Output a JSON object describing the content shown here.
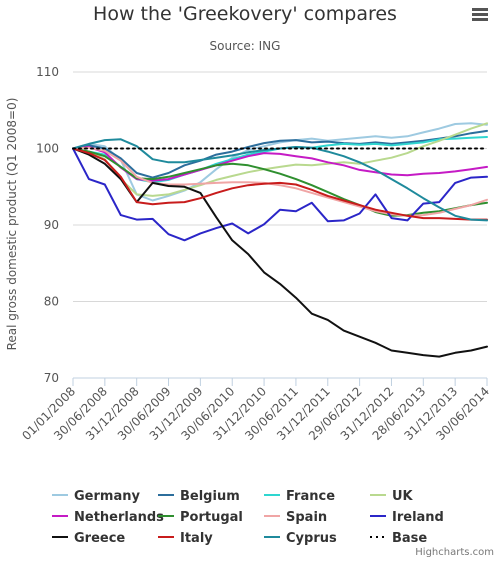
{
  "ui": {
    "menu_icon": "hamburger-menu-icon",
    "credits": "Highcharts.com"
  },
  "chart_data": {
    "type": "line",
    "title": "How the 'Greekovery' compares",
    "subtitle": "Source: ING",
    "ylabel": "Real gross domestic product (Q1 2008=0)",
    "ylim": [
      70,
      110
    ],
    "yticks": [
      70,
      80,
      90,
      100,
      110
    ],
    "x_categories": [
      "01/01/2008",
      "30/06/2008",
      "31/12/2008",
      "30/06/2009",
      "31/12/2009",
      "30/06/2010",
      "31/12/2010",
      "30/06/2011",
      "31/12/2011",
      "29/06/2012",
      "31/12/2012",
      "28/06/2013",
      "31/12/2013",
      "30/06/2014"
    ],
    "x_range": [
      0,
      13
    ],
    "grid": "horizontal",
    "legend_position": "bottom",
    "series": [
      {
        "name": "Germany",
        "color": "#9ecae1",
        "dashed": false,
        "x": [
          0,
          0.5,
          1,
          1.5,
          2,
          2.5,
          3,
          3.5,
          4,
          4.5,
          5,
          5.5,
          6,
          6.5,
          7,
          7.5,
          8,
          8.5,
          9,
          9.5,
          10,
          10.5,
          11,
          11.5,
          12,
          12.5,
          13
        ],
        "y": [
          100,
          100.6,
          100.3,
          98.5,
          94.0,
          93.2,
          93.8,
          94.5,
          95.6,
          97.3,
          98.8,
          99.8,
          100.3,
          100.8,
          101.1,
          101.3,
          101.0,
          101.2,
          101.4,
          101.6,
          101.4,
          101.6,
          102.1,
          102.6,
          103.2,
          103.3,
          103.1
        ]
      },
      {
        "name": "Belgium",
        "color": "#2c6e9c",
        "dashed": false,
        "x": [
          0,
          0.5,
          1,
          1.5,
          2,
          2.5,
          3,
          3.5,
          4,
          4.5,
          5,
          5.5,
          6,
          6.5,
          7,
          7.5,
          8,
          8.5,
          9,
          9.5,
          10,
          10.5,
          11,
          11.5,
          12,
          12.5,
          13
        ],
        "y": [
          100,
          100.4,
          100.0,
          98.7,
          96.8,
          96.2,
          96.8,
          97.8,
          98.4,
          99.2,
          99.6,
          100.2,
          100.7,
          101.0,
          101.1,
          100.8,
          100.9,
          100.7,
          100.6,
          100.8,
          100.6,
          100.8,
          101.0,
          101.3,
          101.6,
          102.0,
          102.3
        ]
      },
      {
        "name": "France",
        "color": "#2ed6d0",
        "dashed": false,
        "x": [
          0,
          0.5,
          1,
          1.5,
          2,
          2.5,
          3,
          3.5,
          4,
          4.5,
          5,
          5.5,
          6,
          6.5,
          7,
          7.5,
          8,
          8.5,
          9,
          9.5,
          10,
          10.5,
          11,
          11.5,
          12,
          12.5,
          13
        ],
        "y": [
          100,
          99.6,
          99.2,
          97.6,
          96.0,
          95.6,
          95.9,
          96.6,
          97.2,
          98.0,
          98.6,
          99.2,
          99.6,
          100.0,
          100.2,
          100.1,
          100.4,
          100.6,
          100.5,
          100.6,
          100.4,
          100.6,
          100.8,
          101.2,
          101.3,
          101.4,
          101.5
        ]
      },
      {
        "name": "UK",
        "color": "#b9d98f",
        "dashed": false,
        "x": [
          0,
          0.5,
          1,
          1.5,
          2,
          2.5,
          3,
          3.5,
          4,
          4.5,
          5,
          5.5,
          6,
          6.5,
          7,
          7.5,
          8,
          8.5,
          9,
          9.5,
          10,
          10.5,
          11,
          11.5,
          12,
          12.5,
          13
        ],
        "y": [
          100,
          99.6,
          98.6,
          96.0,
          94.0,
          93.8,
          94.0,
          94.6,
          95.2,
          95.9,
          96.4,
          96.9,
          97.3,
          97.6,
          97.9,
          97.8,
          98.0,
          98.2,
          98.0,
          98.4,
          98.8,
          99.4,
          100.3,
          101.0,
          101.8,
          102.6,
          103.3
        ]
      },
      {
        "name": "Netherlands",
        "color": "#c51bc5",
        "dashed": false,
        "x": [
          0,
          0.5,
          1,
          1.5,
          2,
          2.5,
          3,
          3.5,
          4,
          4.5,
          5,
          5.5,
          6,
          6.5,
          7,
          7.5,
          8,
          8.5,
          9,
          9.5,
          10,
          10.5,
          11,
          11.5,
          12,
          12.5,
          13
        ],
        "y": [
          100,
          100.2,
          99.5,
          97.5,
          96.0,
          95.8,
          96.0,
          96.6,
          97.2,
          97.8,
          98.4,
          99.0,
          99.4,
          99.3,
          99.0,
          98.7,
          98.2,
          97.8,
          97.2,
          96.9,
          96.6,
          96.5,
          96.7,
          96.8,
          97.0,
          97.3,
          97.6
        ]
      },
      {
        "name": "Portugal",
        "color": "#2f8f2f",
        "dashed": false,
        "x": [
          0,
          0.5,
          1,
          1.5,
          2,
          2.5,
          3,
          3.5,
          4,
          4.5,
          5,
          5.5,
          6,
          6.5,
          7,
          7.5,
          8,
          8.5,
          9,
          9.5,
          10,
          10.5,
          11,
          11.5,
          12,
          12.5,
          13
        ],
        "y": [
          100,
          99.6,
          99.0,
          97.6,
          96.1,
          96.0,
          96.3,
          96.8,
          97.3,
          97.8,
          98.0,
          97.8,
          97.3,
          96.7,
          96.0,
          95.2,
          94.3,
          93.4,
          92.6,
          91.7,
          91.2,
          91.3,
          91.6,
          91.8,
          92.2,
          92.6,
          92.9
        ]
      },
      {
        "name": "Spain",
        "color": "#f0a5a5",
        "dashed": false,
        "x": [
          0,
          0.5,
          1,
          1.5,
          2,
          2.5,
          3,
          3.5,
          4,
          4.5,
          5,
          5.5,
          6,
          6.5,
          7,
          7.5,
          8,
          8.5,
          9,
          9.5,
          10,
          10.5,
          11,
          11.5,
          12,
          12.5,
          13
        ],
        "y": [
          100,
          100.1,
          99.7,
          98.4,
          96.3,
          95.5,
          95.3,
          95.3,
          95.4,
          95.5,
          95.6,
          95.6,
          95.5,
          95.2,
          94.8,
          94.2,
          93.6,
          93.0,
          92.4,
          91.8,
          91.4,
          91.2,
          91.3,
          91.6,
          92.1,
          92.6,
          93.3
        ]
      },
      {
        "name": "Ireland",
        "color": "#2b26c8",
        "dashed": false,
        "x": [
          0,
          0.5,
          1,
          1.5,
          2,
          2.5,
          3,
          3.5,
          4,
          4.5,
          5,
          5.5,
          6,
          6.5,
          7,
          7.5,
          8,
          8.5,
          9,
          9.5,
          10,
          10.5,
          11,
          11.5,
          12,
          12.5,
          13
        ],
        "y": [
          100,
          96.0,
          95.3,
          91.3,
          90.7,
          90.8,
          88.8,
          88.0,
          88.9,
          89.6,
          90.2,
          88.9,
          90.1,
          92.0,
          91.8,
          92.9,
          90.5,
          90.6,
          91.5,
          94.0,
          90.9,
          90.6,
          92.8,
          93.0,
          95.5,
          96.2,
          96.3
        ]
      },
      {
        "name": "Greece",
        "color": "#111111",
        "dashed": false,
        "x": [
          0,
          0.5,
          1,
          1.5,
          2,
          2.5,
          3,
          3.5,
          4,
          4.5,
          5,
          5.5,
          6,
          6.5,
          7,
          7.5,
          8,
          8.5,
          9,
          9.5,
          10,
          10.5,
          11,
          11.5,
          12,
          12.5,
          13
        ],
        "y": [
          100,
          99.2,
          98.0,
          96.0,
          93.0,
          95.5,
          95.1,
          95.0,
          94.2,
          91.0,
          88.0,
          86.2,
          83.8,
          82.3,
          80.5,
          78.4,
          77.6,
          76.2,
          75.4,
          74.6,
          73.6,
          73.3,
          73.0,
          72.8,
          73.3,
          73.6,
          74.1
        ]
      },
      {
        "name": "Italy",
        "color": "#c81c1c",
        "dashed": false,
        "x": [
          0,
          0.5,
          1,
          1.5,
          2,
          2.5,
          3,
          3.5,
          4,
          4.5,
          5,
          5.5,
          6,
          6.5,
          7,
          7.5,
          8,
          8.5,
          9,
          9.5,
          10,
          10.5,
          11,
          11.5,
          12,
          12.5,
          13
        ],
        "y": [
          100,
          99.4,
          98.5,
          96.3,
          93.0,
          92.7,
          92.9,
          93.0,
          93.5,
          94.2,
          94.8,
          95.2,
          95.4,
          95.5,
          95.3,
          94.6,
          93.8,
          93.2,
          92.6,
          92.0,
          91.6,
          91.2,
          90.9,
          90.9,
          90.8,
          90.7,
          90.7
        ]
      },
      {
        "name": "Cyprus",
        "color": "#1f8a9c",
        "dashed": false,
        "x": [
          0,
          0.5,
          1,
          1.5,
          2,
          2.5,
          3,
          3.5,
          4,
          4.5,
          5,
          5.5,
          6,
          6.5,
          7,
          7.5,
          8,
          8.5,
          9,
          9.5,
          10,
          10.5,
          11,
          11.5,
          12,
          12.5,
          13
        ],
        "y": [
          100,
          100.6,
          101.1,
          101.2,
          100.3,
          98.6,
          98.2,
          98.2,
          98.5,
          98.8,
          99.1,
          99.5,
          99.8,
          100.0,
          100.2,
          100.1,
          99.6,
          99.0,
          98.2,
          97.2,
          96.0,
          94.8,
          93.5,
          92.3,
          91.2,
          90.7,
          90.6
        ]
      },
      {
        "name": "Base",
        "color": "#000000",
        "dashed": true,
        "x": [
          0,
          13
        ],
        "y": [
          100,
          100
        ]
      }
    ]
  }
}
